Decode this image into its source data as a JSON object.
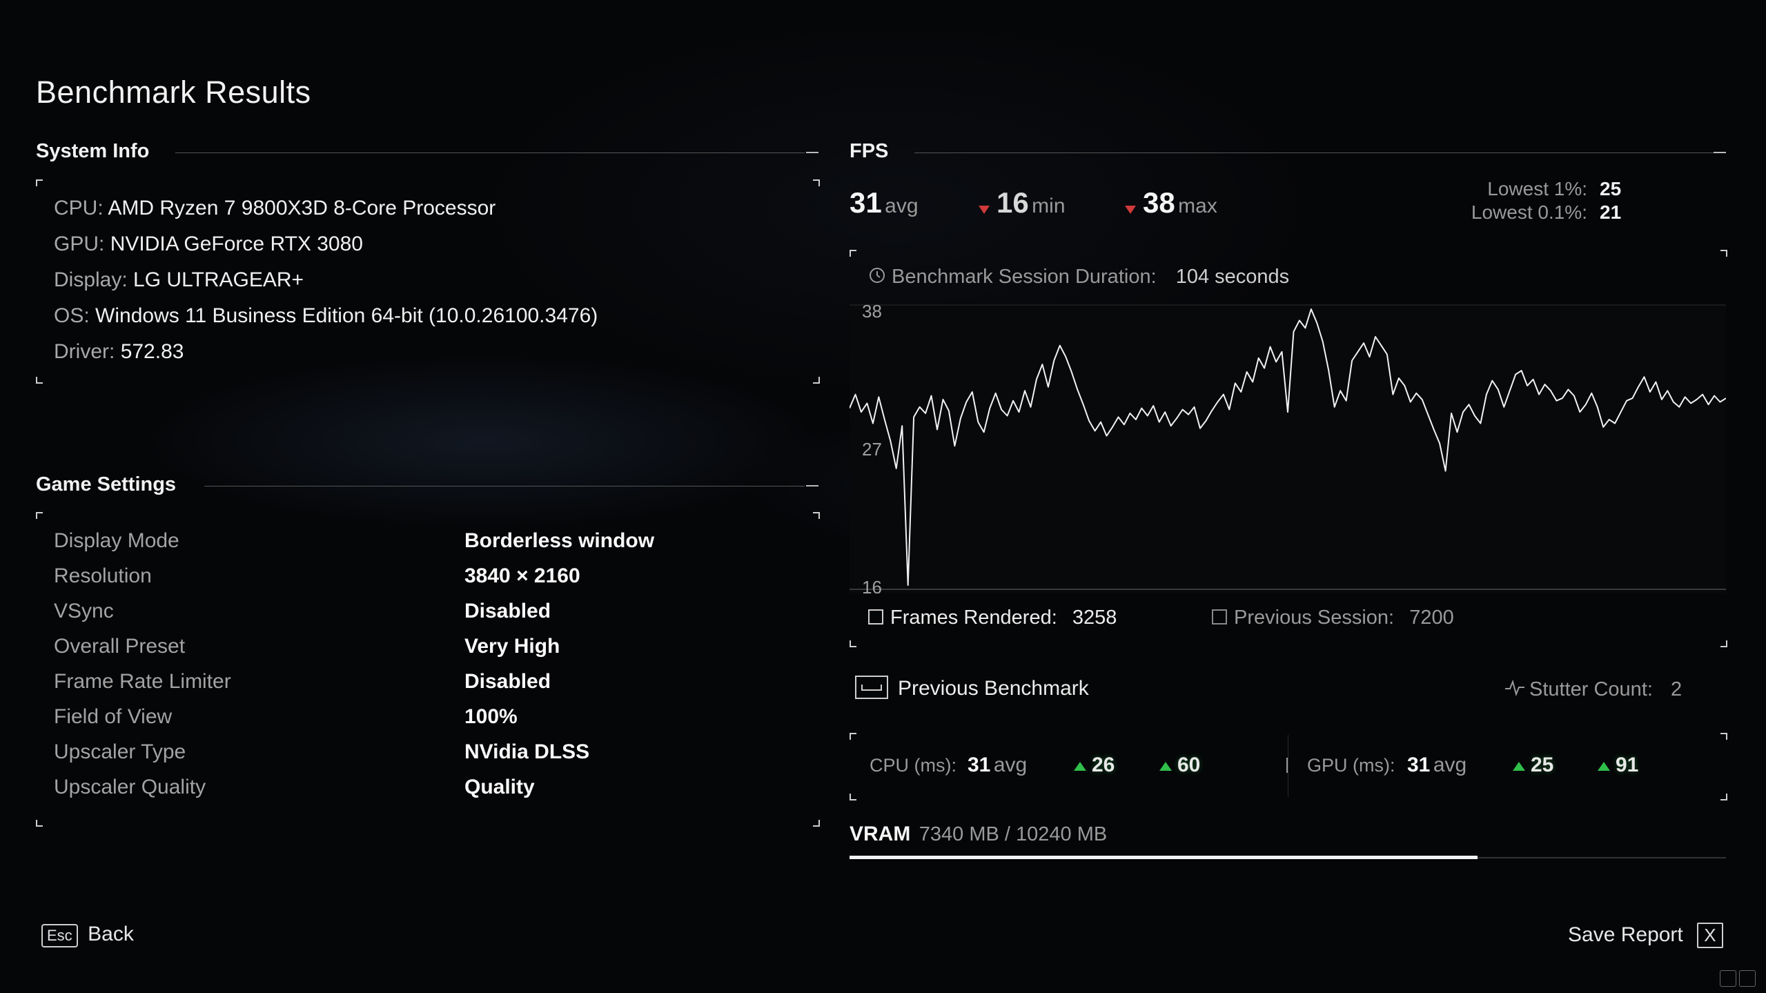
{
  "page_title": "Benchmark Results",
  "system_info": {
    "title": "System Info",
    "rows": [
      {
        "key": "CPU:",
        "value": "AMD Ryzen 7 9800X3D 8-Core Processor"
      },
      {
        "key": "GPU:",
        "value": "NVIDIA GeForce RTX 3080"
      },
      {
        "key": "Display:",
        "value": "LG ULTRAGEAR+"
      },
      {
        "key": "OS:",
        "value": "Windows 11 Business Edition 64-bit (10.0.26100.3476)"
      },
      {
        "key": "Driver:",
        "value": "572.83"
      }
    ]
  },
  "game_settings": {
    "title": "Game Settings",
    "rows": [
      {
        "key": "Display Mode",
        "value": "Borderless window"
      },
      {
        "key": "Resolution",
        "value": "3840 × 2160"
      },
      {
        "key": "VSync",
        "value": "Disabled"
      },
      {
        "key": "Overall Preset",
        "value": "Very High"
      },
      {
        "key": "Frame Rate Limiter",
        "value": "Disabled"
      },
      {
        "key": "Field of View",
        "value": "100%"
      },
      {
        "key": "Upscaler Type",
        "value": "NVidia DLSS"
      },
      {
        "key": "Upscaler Quality",
        "value": "Quality"
      }
    ]
  },
  "fps": {
    "title": "FPS",
    "avg": "31",
    "avg_unit": "avg",
    "min": "16",
    "min_unit": "min",
    "max": "38",
    "max_unit": "max",
    "lowest1_label": "Lowest 1%:",
    "lowest1_value": "25",
    "lowest01_label": "Lowest 0.1%:",
    "lowest01_value": "21",
    "duration_label": "Benchmark Session Duration:",
    "duration_value": "104 seconds",
    "frames_label": "Frames Rendered:",
    "frames_value": "3258",
    "prev_session_label": "Previous Session:",
    "prev_session_value": "7200",
    "previous_benchmark_label": "Previous Benchmark",
    "stutter_label": "Stutter Count:",
    "stutter_value": "2"
  },
  "chart_data": {
    "type": "line",
    "title": "",
    "xlabel": "",
    "ylabel": "",
    "y_ticks": [
      "38",
      "27",
      "16"
    ],
    "ylim": [
      16,
      38
    ],
    "xlim": [
      0,
      104
    ],
    "grid": false,
    "series": [
      {
        "values": [
          30.1,
          31.2,
          29.8,
          30.5,
          28.9,
          31.0,
          29.2,
          27.5,
          25.3,
          28.7,
          16.0,
          29.4,
          30.2,
          29.7,
          31.1,
          28.4,
          30.8,
          29.9,
          27.1,
          29.3,
          30.6,
          31.4,
          29.0,
          28.2,
          30.1,
          31.3,
          30.0,
          29.5,
          30.7,
          29.8,
          31.5,
          30.2,
          32.4,
          33.6,
          31.8,
          33.9,
          35.1,
          34.2,
          33.0,
          31.6,
          30.4,
          29.1,
          28.3,
          29.0,
          27.9,
          28.6,
          29.4,
          28.8,
          29.7,
          29.2,
          30.1,
          29.5,
          30.3,
          29.0,
          29.8,
          28.7,
          29.3,
          30.0,
          29.6,
          30.2,
          28.5,
          29.1,
          29.9,
          30.6,
          31.2,
          30.0,
          32.1,
          31.4,
          33.0,
          32.2,
          34.1,
          33.3,
          35.0,
          33.8,
          34.6,
          29.8,
          36.2,
          37.1,
          36.5,
          38.0,
          36.9,
          35.4,
          33.1,
          30.2,
          31.5,
          30.7,
          33.9,
          34.6,
          35.3,
          34.2,
          35.8,
          35.1,
          34.4,
          31.2,
          32.5,
          31.9,
          30.6,
          31.3,
          30.8,
          29.6,
          28.4,
          27.3,
          25.1,
          29.7,
          28.2,
          29.8,
          30.4,
          29.5,
          28.9,
          31.2,
          32.3,
          31.6,
          30.2,
          31.5,
          32.8,
          33.1,
          31.9,
          32.4,
          31.2,
          32.0,
          31.5,
          30.7,
          30.9,
          31.6,
          31.1,
          29.8,
          30.4,
          31.3,
          30.2,
          28.6,
          29.2,
          28.9,
          29.8,
          30.7,
          30.9,
          31.8,
          32.6,
          31.4,
          32.2,
          30.8,
          31.5,
          30.6,
          30.2,
          31.0,
          30.5,
          30.8,
          31.2,
          30.4,
          31.1,
          30.6,
          30.9
        ]
      }
    ]
  },
  "cpu_ms": {
    "label": "CPU (ms):",
    "avg": "31",
    "avg_unit": "avg",
    "v1": "26",
    "v2": "60"
  },
  "gpu_ms": {
    "label": "GPU (ms):",
    "avg": "31",
    "avg_unit": "avg",
    "v1": "25",
    "v2": "91"
  },
  "vram": {
    "label": "VRAM",
    "value": "7340 MB / 10240 MB",
    "fraction": 0.7168
  },
  "footer": {
    "esc_key": "Esc",
    "back_label": "Back",
    "save_label": "Save Report",
    "save_key": "X"
  }
}
